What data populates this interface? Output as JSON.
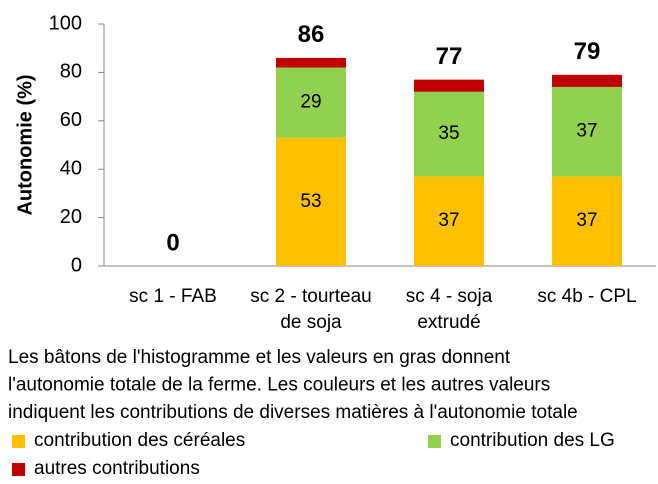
{
  "chart_data": {
    "type": "stacked_bar",
    "y_label": "Autonomie (%)",
    "categories": [
      "sc 1 - FAB",
      "sc 2 - tourteau\nde soja",
      "sc 4 - soja\nextrudé",
      "sc 4b - CPL"
    ],
    "series": [
      {
        "name": "contribution des céréales",
        "color": "#ffc000",
        "values": [
          0,
          53,
          37,
          37
        ],
        "show_labels": true
      },
      {
        "name": "contribution des LG",
        "color": "#92d050",
        "values": [
          0,
          29,
          35,
          37
        ],
        "show_labels": true
      },
      {
        "name": "autres contributions",
        "color": "#c00000",
        "values": [
          0,
          4,
          5,
          5
        ],
        "show_labels": false
      }
    ],
    "totals": [
      0,
      86,
      77,
      79
    ],
    "ylim": [
      0,
      100
    ],
    "yticks": [
      0,
      20,
      40,
      60,
      80,
      100
    ],
    "grid": false,
    "note": [
      "Les bâtons de l'histogramme et les valeurs en gras donnent",
      "l'autonomie totale de la ferme.  Les couleurs et les autres valeurs",
      "indiquent les contributions de diverses matières à l'autonomie totale"
    ]
  }
}
